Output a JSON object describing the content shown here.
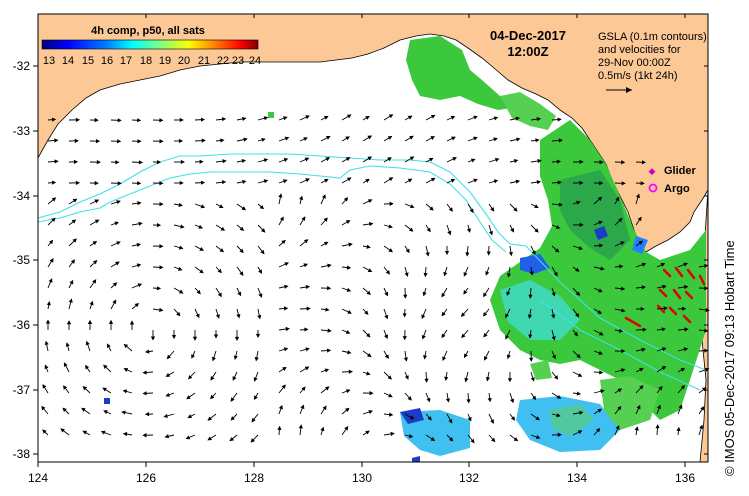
{
  "colorbar": {
    "title": "4h comp, p50, all sats",
    "ticks": [
      "13",
      "14",
      "15",
      "16",
      "17",
      "18",
      "19",
      "20",
      "21",
      "22",
      "23",
      "24"
    ],
    "colors": [
      "#00007f",
      "#0000ff",
      "#0080ff",
      "#00ffff",
      "#80ff80",
      "#ffff00",
      "#ff8000",
      "#ff0000",
      "#7f0000"
    ]
  },
  "header": {
    "date": "04-Dec-2017",
    "time": "12:00Z"
  },
  "legend_box": {
    "line1": "GSLA (0.1m contours)",
    "line2": "and velocities for",
    "line3": "29-Nov 00:00Z",
    "line4": "0.5m/s (1kt 24h)"
  },
  "markers": {
    "glider_label": "Glider",
    "argo_label": "Argo",
    "glider_color": "#cc00cc",
    "argo_color": "#ff00ff"
  },
  "axes": {
    "lat_labels": [
      "-32",
      "-33",
      "-34",
      "-35",
      "-36",
      "-37",
      "-38"
    ],
    "lon_labels": [
      "124",
      "126",
      "128",
      "130",
      "132",
      "134",
      "136"
    ]
  },
  "credit": "©  IMOS 05-Dec-2017 09:13 Hobart Time",
  "colors": {
    "land": "#fcc896",
    "ocean": "#ffffff",
    "contour": "#40e0e8",
    "sst_green": "#3cc83c"
  }
}
